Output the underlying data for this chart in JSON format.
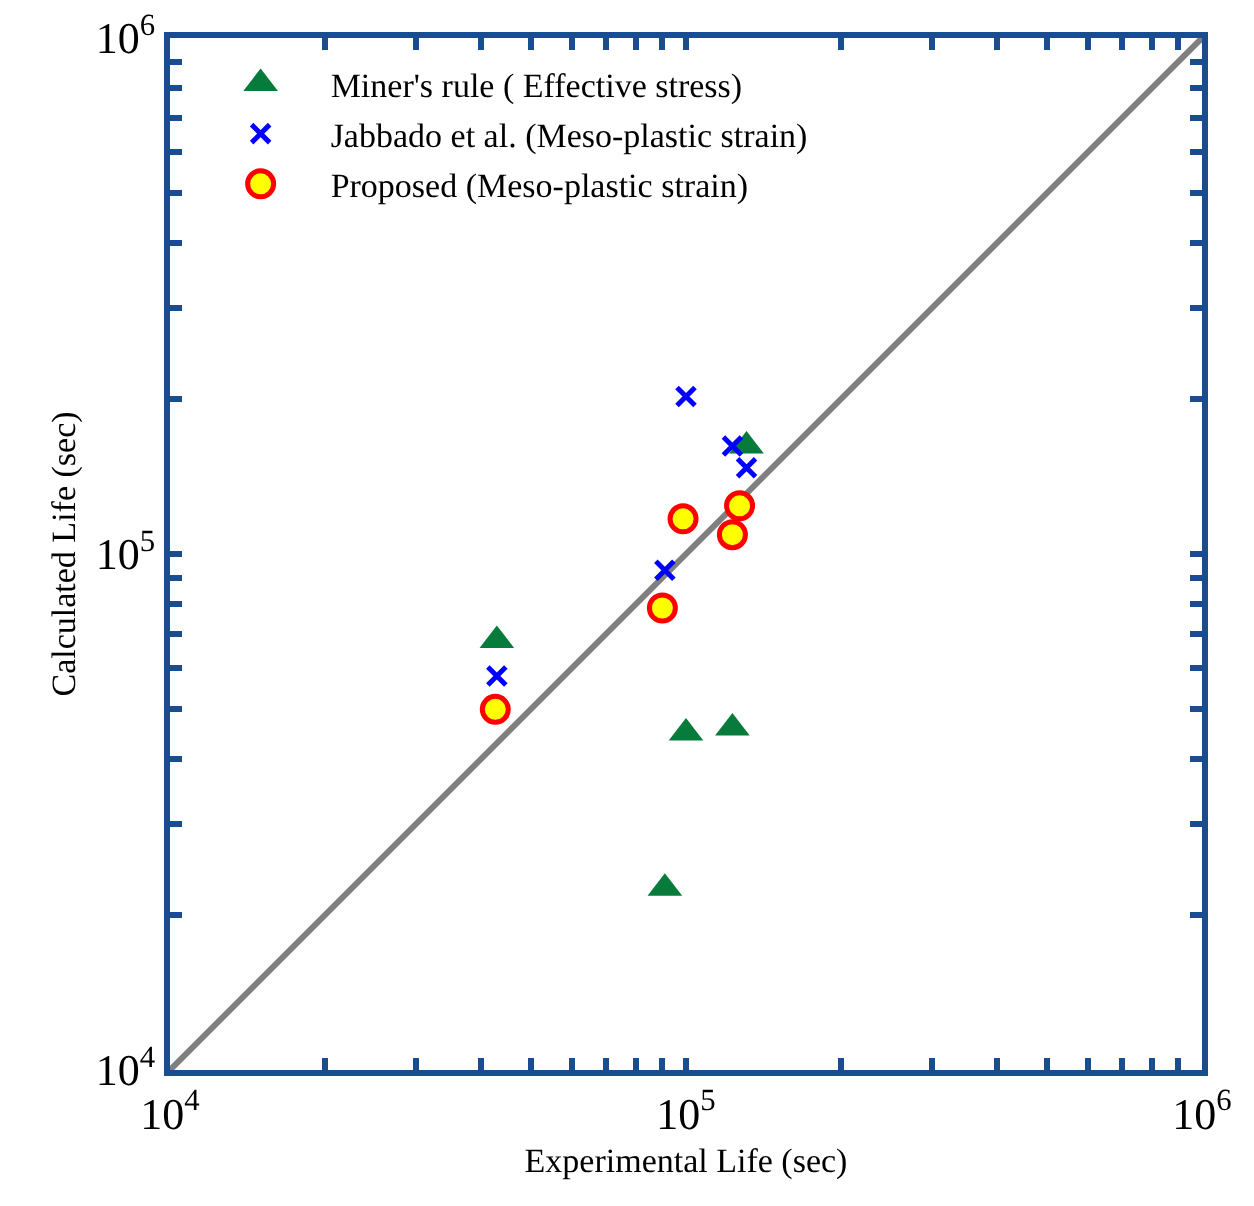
{
  "chart_data": {
    "type": "scatter",
    "xlabel": "Experimental Life (sec)",
    "ylabel": "Calculated Life (sec)",
    "log": "xy",
    "grid": false,
    "legend": "top left",
    "xlim": [
      10000,
      1000000
    ],
    "ylim": [
      10000,
      1000000
    ],
    "xticks": [
      {
        "value": 10000,
        "label": "10$^{4}$"
      },
      {
        "value": 20000,
        "label": null
      },
      {
        "value": 30000,
        "label": null
      },
      {
        "value": 40000,
        "label": null
      },
      {
        "value": 50000,
        "label": null
      },
      {
        "value": 60000,
        "label": null
      },
      {
        "value": 70000,
        "label": null
      },
      {
        "value": 80000,
        "label": null
      },
      {
        "value": 90000,
        "label": null
      },
      {
        "value": 100000,
        "label": "10$^{5}$"
      },
      {
        "value": 200000,
        "label": null
      },
      {
        "value": 300000,
        "label": null
      },
      {
        "value": 400000,
        "label": null
      },
      {
        "value": 500000,
        "label": null
      },
      {
        "value": 600000,
        "label": null
      },
      {
        "value": 700000,
        "label": null
      },
      {
        "value": 800000,
        "label": null
      },
      {
        "value": 900000,
        "label": null
      },
      {
        "value": 1000000,
        "label": "10$^{6}$"
      }
    ],
    "yticks": [
      {
        "value": 10000,
        "label": "10$^{4}$"
      },
      {
        "value": 20000,
        "label": null
      },
      {
        "value": 30000,
        "label": null
      },
      {
        "value": 40000,
        "label": null
      },
      {
        "value": 50000,
        "label": null
      },
      {
        "value": 60000,
        "label": null
      },
      {
        "value": 70000,
        "label": null
      },
      {
        "value": 80000,
        "label": null
      },
      {
        "value": 90000,
        "label": null
      },
      {
        "value": 100000,
        "label": "10$^{5}$"
      },
      {
        "value": 200000,
        "label": null
      },
      {
        "value": 300000,
        "label": null
      },
      {
        "value": 400000,
        "label": null
      },
      {
        "value": 500000,
        "label": null
      },
      {
        "value": 600000,
        "label": null
      },
      {
        "value": 700000,
        "label": null
      },
      {
        "value": 800000,
        "label": null
      },
      {
        "value": 900000,
        "label": null
      },
      {
        "value": 1000000,
        "label": "10$^{6}$"
      }
    ],
    "series": [
      {
        "type": "line",
        "color": "#808080",
        "marker": "none",
        "line_style": "solid",
        "x": [
          10000,
          1000000
        ],
        "values": [
          10000,
          1000000
        ]
      },
      {
        "name": "Miner's rule ( Effective stress)",
        "color": "#067b3b",
        "marker": "triangle",
        "x": [
          43000,
          100000,
          123000,
          91000,
          131000
        ],
        "values": [
          68000,
          45000,
          46000,
          22500,
          162000
        ]
      },
      {
        "name": "Jabbado et al. (Meso-plastic strain)",
        "color": "#0000ff",
        "marker": "cross",
        "x": [
          43000,
          100000,
          123000,
          131000,
          91000
        ],
        "values": [
          58000,
          202000,
          162000,
          147000,
          93000
        ]
      },
      {
        "name": "Proposed (Meso-plastic strain)",
        "color": "#ffff00",
        "marker": "circle",
        "x": [
          42700,
          90000,
          98700,
          123000,
          127000
        ],
        "values": [
          50000,
          78600,
          117000,
          109000,
          124000
        ]
      }
    ]
  }
}
